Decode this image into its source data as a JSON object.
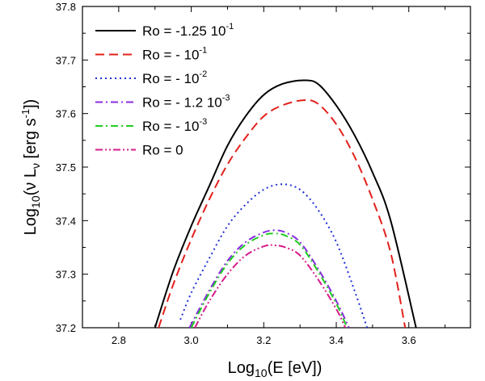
{
  "chart_data": {
    "type": "line",
    "x_axis": {
      "label_main": "Log",
      "label_sub": "10",
      "label_rest": "(E [eV])",
      "range": [
        2.7,
        3.77
      ],
      "ticks": [
        2.8,
        3.0,
        3.2,
        3.4,
        3.6
      ],
      "tick_labels": [
        "2.8",
        "3.0",
        "3.2",
        "3.4",
        "3.6"
      ]
    },
    "y_axis": {
      "label_main": "Log",
      "label_sub": "10",
      "label_mid": "(ν L",
      "label_nu_sub": "ν",
      "label_units": " [erg s",
      "label_sup": "-1",
      "label_end": "])",
      "range": [
        37.2,
        37.8
      ],
      "ticks": [
        37.2,
        37.3,
        37.4,
        37.5,
        37.6,
        37.7,
        37.8
      ],
      "tick_labels": [
        "37.2",
        "37.3",
        "37.4",
        "37.5",
        "37.6",
        "37.7",
        "37.8"
      ]
    },
    "legend_position": "top-left",
    "series": [
      {
        "legend_base": "Ro = -1.25 10",
        "legend_sup": "-1",
        "color": "#000000",
        "dash": "solid",
        "x": [
          2.9,
          2.95,
          3.0,
          3.05,
          3.1,
          3.15,
          3.2,
          3.25,
          3.31,
          3.35,
          3.4,
          3.45,
          3.5,
          3.55,
          3.62
        ],
        "y": [
          37.2,
          37.305,
          37.39,
          37.465,
          37.54,
          37.595,
          37.635,
          37.655,
          37.662,
          37.655,
          37.615,
          37.56,
          37.49,
          37.4,
          37.2
        ]
      },
      {
        "legend_base": "Ro = - 10",
        "legend_sup": "-1",
        "color": "#e3201b",
        "dash": "dashed",
        "x": [
          2.91,
          2.95,
          3.0,
          3.05,
          3.1,
          3.15,
          3.2,
          3.25,
          3.31,
          3.35,
          3.4,
          3.45,
          3.5,
          3.55,
          3.59
        ],
        "y": [
          37.2,
          37.28,
          37.365,
          37.44,
          37.505,
          37.555,
          37.595,
          37.615,
          37.625,
          37.618,
          37.58,
          37.52,
          37.44,
          37.34,
          37.2
        ]
      },
      {
        "legend_base": "Ro = - 10",
        "legend_sup": "-2",
        "color": "#1f2fd6",
        "dash": "dotted",
        "x": [
          2.97,
          3.0,
          3.05,
          3.1,
          3.15,
          3.2,
          3.25,
          3.3,
          3.35,
          3.4,
          3.45,
          3.485
        ],
        "y": [
          37.215,
          37.265,
          37.33,
          37.39,
          37.43,
          37.458,
          37.468,
          37.458,
          37.42,
          37.36,
          37.27,
          37.2
        ]
      },
      {
        "legend_base": "Ro = - 1.2 10",
        "legend_sup": "-3",
        "color": "#8a2be2",
        "dash": "dashdot",
        "x": [
          2.995,
          3.05,
          3.1,
          3.15,
          3.2,
          3.23,
          3.26,
          3.3,
          3.35,
          3.4,
          3.435
        ],
        "y": [
          37.2,
          37.27,
          37.325,
          37.36,
          37.378,
          37.382,
          37.378,
          37.36,
          37.31,
          37.25,
          37.2
        ]
      },
      {
        "legend_base": "Ro = - 10",
        "legend_sup": "-3",
        "color": "#22cc22",
        "dash": "dashdot",
        "x": [
          3.0,
          3.05,
          3.1,
          3.15,
          3.2,
          3.23,
          3.26,
          3.3,
          3.35,
          3.4,
          3.43
        ],
        "y": [
          37.2,
          37.265,
          37.32,
          37.355,
          37.373,
          37.376,
          37.372,
          37.355,
          37.305,
          37.245,
          37.2
        ]
      },
      {
        "legend_base": "Ro = 0",
        "legend_sup": "",
        "color": "#d81b8c",
        "dash": "dashdotdot",
        "x": [
          3.01,
          3.05,
          3.1,
          3.15,
          3.2,
          3.23,
          3.26,
          3.3,
          3.35,
          3.4,
          3.425
        ],
        "y": [
          37.2,
          37.25,
          37.3,
          37.335,
          37.352,
          37.354,
          37.35,
          37.335,
          37.29,
          37.235,
          37.2
        ]
      }
    ]
  }
}
